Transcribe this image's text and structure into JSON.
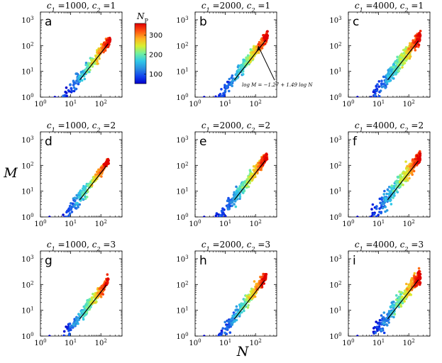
{
  "chart_data": {
    "type": "scatter",
    "layout": "3x3 grid of log-log scatter panels",
    "xlabel": "N",
    "ylabel": "M",
    "xscale": "log",
    "yscale": "log",
    "xlim": [
      1,
      500
    ],
    "ylim": [
      1,
      2000
    ],
    "xticks": [
      {
        "base": "10",
        "exp": "0"
      },
      {
        "base": "10",
        "exp": "1"
      },
      {
        "base": "10",
        "exp": "2"
      }
    ],
    "yticks": [
      {
        "base": "10",
        "exp": "0"
      },
      {
        "base": "10",
        "exp": "1"
      },
      {
        "base": "10",
        "exp": "2"
      },
      {
        "base": "10",
        "exp": "3"
      }
    ],
    "colorbar": {
      "label_main": "N",
      "label_sub": "P",
      "range": [
        50,
        360
      ],
      "ticks": [
        "100",
        "200",
        "300"
      ],
      "tick_values": [
        100,
        200,
        300
      ],
      "colors": [
        "#0000cc",
        "#1144ee",
        "#2a8ee0",
        "#30c8e8",
        "#70f0a0",
        "#d8f030",
        "#ffb020",
        "#ff5010",
        "#e00000"
      ]
    },
    "fit_line": {
      "intercept": -1.27,
      "slope": 1.49,
      "label": "log M = −1.27 + 1.49 log N"
    },
    "panels": [
      {
        "letter": "a",
        "c1": "1000",
        "c2": "1",
        "x_range": [
          3,
          205
        ],
        "cluster_width": 0.15,
        "points": 260
      },
      {
        "letter": "b",
        "c1": "2000",
        "c2": "1",
        "x_range": [
          3,
          255
        ],
        "cluster_width": 0.15,
        "points": 320
      },
      {
        "letter": "c",
        "c1": "4000",
        "c2": "1",
        "x_range": [
          3,
          245
        ],
        "cluster_width": 0.2,
        "points": 320
      },
      {
        "letter": "d",
        "c1": "1000",
        "c2": "2",
        "x_range": [
          3,
          180
        ],
        "cluster_width": 0.14,
        "points": 260
      },
      {
        "letter": "e",
        "c1": "2000",
        "c2": "2",
        "x_range": [
          3,
          245
        ],
        "cluster_width": 0.15,
        "points": 320
      },
      {
        "letter": "f",
        "c1": "4000",
        "c2": "2",
        "x_range": [
          3,
          240
        ],
        "cluster_width": 0.2,
        "points": 320
      },
      {
        "letter": "g",
        "c1": "1000",
        "c2": "3",
        "x_range": [
          3,
          180
        ],
        "cluster_width": 0.14,
        "points": 260
      },
      {
        "letter": "h",
        "c1": "2000",
        "c2": "3",
        "x_range": [
          3,
          235
        ],
        "cluster_width": 0.15,
        "points": 320
      },
      {
        "letter": "i",
        "c1": "4000",
        "c2": "3",
        "x_range": [
          4,
          245
        ],
        "cluster_width": 0.2,
        "points": 320
      }
    ]
  }
}
